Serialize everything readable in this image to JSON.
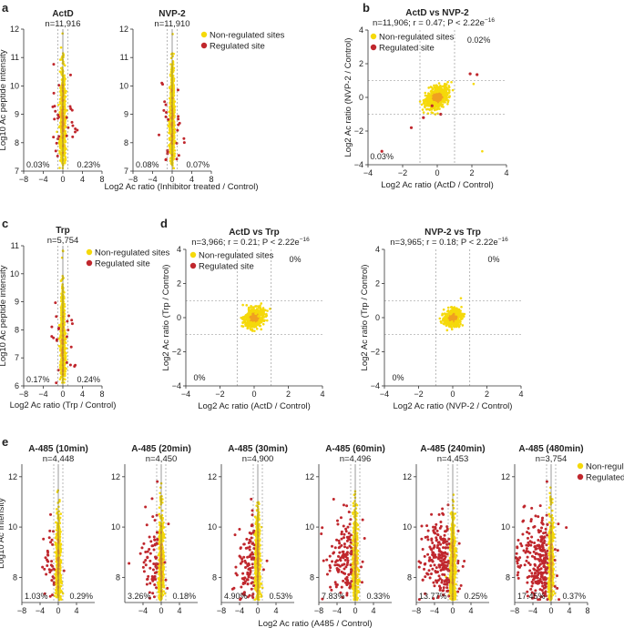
{
  "colors": {
    "nonreg": "#f5d90a",
    "dense": "#f0a020",
    "reg": "#c0272d",
    "axis": "#333333",
    "dash": "#888888"
  },
  "legend": {
    "nonreg": "Non-regulated sites",
    "reg": "Regulated site"
  },
  "panels": {
    "a": "a",
    "b": "b",
    "c": "c",
    "d": "d",
    "e": "e"
  },
  "chart_data": [
    {
      "id": "a1",
      "type": "scatter",
      "title": "ActD",
      "n": "n=11,916",
      "xlim": [
        -8,
        8
      ],
      "ylim": [
        7,
        12
      ],
      "xticks": [
        "−8",
        "−4",
        "0",
        "4",
        "8"
      ],
      "yticks": [
        "7",
        "8",
        "9",
        "10",
        "11",
        "12"
      ],
      "pct_left": "0.03%",
      "pct_right": "0.23%",
      "ylabel": "Log10 Ac peptide intensity",
      "legend": false
    },
    {
      "id": "a2",
      "type": "scatter",
      "title": "NVP-2",
      "n": "n=11,910",
      "xlim": [
        -8,
        8
      ],
      "ylim": [
        7,
        12
      ],
      "xticks": [
        "−8",
        "−4",
        "0",
        "4",
        "8"
      ],
      "yticks": [
        "7",
        "8",
        "9",
        "10",
        "11",
        "12"
      ],
      "pct_left": "0.08%",
      "pct_right": "0.07%",
      "legend": true
    },
    {
      "shared_xlabel": "Log2 Ac ratio (Inhibitor treated / Control)"
    },
    {
      "id": "b",
      "type": "scatter",
      "title": "ActD vs NVP-2",
      "stats": "n=11,906; r = 0.47; P < 2.22e",
      "stats_sup": "−16",
      "xlim": [
        -4,
        4
      ],
      "ylim": [
        -4,
        4
      ],
      "xticks": [
        "−4",
        "−2",
        "0",
        "2",
        "4"
      ],
      "yticks": [
        "−4",
        "−2",
        "0",
        "2",
        "4"
      ],
      "pct_top": "0.02%",
      "pct_bottom": "0.03%",
      "xlabel": "Log2 Ac ratio (ActD / Control)",
      "ylabel": "Log2 Ac ratio (NVP-2 / Control)",
      "legend": true
    },
    {
      "id": "c",
      "type": "scatter",
      "title": "Trp",
      "n": "n=5,754",
      "xlim": [
        -8,
        8
      ],
      "ylim": [
        6,
        11
      ],
      "xticks": [
        "−8",
        "−4",
        "0",
        "4",
        "8"
      ],
      "yticks": [
        "6",
        "7",
        "8",
        "9",
        "10",
        "11"
      ],
      "pct_left": "0.17%",
      "pct_right": "0.24%",
      "xlabel": "Log2 Ac ratio (Trp / Control)",
      "ylabel": "Log10 Ac peptide intensity",
      "legend": true
    },
    {
      "id": "d1",
      "type": "scatter",
      "title": "ActD vs Trp",
      "stats": "n=3,966; r = 0.21;  P < 2.22e",
      "stats_sup": "−16",
      "xlim": [
        -4,
        4
      ],
      "ylim": [
        -4,
        4
      ],
      "xticks": [
        "−4",
        "−2",
        "0",
        "2",
        "4"
      ],
      "yticks": [
        "−4",
        "−2",
        "0",
        "2",
        "4"
      ],
      "pct_top": "0%",
      "pct_bottom": "0%",
      "xlabel": "Log2 Ac ratio (ActD / Control)",
      "ylabel": "Log2 Ac ratio (Trp / Control)",
      "legend": true
    },
    {
      "id": "d2",
      "type": "scatter",
      "title": "NVP-2 vs  Trp",
      "stats": "n=3,965; r = 0.18;  P < 2.22e",
      "stats_sup": "−16",
      "xlim": [
        -4,
        4
      ],
      "ylim": [
        -4,
        4
      ],
      "xticks": [
        "−4",
        "−2",
        "0",
        "2",
        "4"
      ],
      "yticks": [
        "−4",
        "−2",
        "0",
        "2",
        "4"
      ],
      "pct_top": "0%",
      "pct_bottom": "0%",
      "xlabel": "Log2 Ac ratio (NVP-2 / Control)",
      "ylabel": "Log2 Ac ratio (Trp / Control)",
      "legend": false
    },
    {
      "id": "e1",
      "type": "scatter",
      "title": "A-485 (10min)",
      "n": "n=4,448",
      "xlim": [
        -8,
        8
      ],
      "ylim": [
        7,
        12.5
      ],
      "xticks": [
        "−8",
        "−4",
        "0",
        "4"
      ],
      "yticks": [
        "8",
        "10",
        "12"
      ],
      "pct_left": "1.03%",
      "pct_right": "0.29%",
      "ylabel": "Log10 Ac Intensity",
      "spread": 0.15
    },
    {
      "id": "e2",
      "type": "scatter",
      "title": "A-485 (20min)",
      "n": "n=4,450",
      "xlim": [
        -8,
        8
      ],
      "ylim": [
        7,
        12.5
      ],
      "xticks": [
        "−4",
        "0",
        "4"
      ],
      "yticks": [
        "8",
        "10",
        "12"
      ],
      "pct_left": "3.26%",
      "pct_right": "0.18%",
      "spread": 0.35
    },
    {
      "id": "e3",
      "type": "scatter",
      "title": "A-485 (30min)",
      "n": "n=4,900",
      "xlim": [
        -8,
        8
      ],
      "ylim": [
        7,
        12.5
      ],
      "xticks": [
        "−8",
        "−4",
        "0",
        "4"
      ],
      "yticks": [
        "8",
        "10",
        "12"
      ],
      "pct_left": "4.90%",
      "pct_right": "0.53%",
      "spread": 0.5
    },
    {
      "id": "e4",
      "type": "scatter",
      "title": "A-485 (60min)",
      "n": "n=4,496",
      "xlim": [
        -8,
        8
      ],
      "ylim": [
        7,
        12.5
      ],
      "xticks": [
        "−8",
        "−4",
        "0",
        "4"
      ],
      "yticks": [
        "8",
        "10",
        "12"
      ],
      "pct_left": "7.83%",
      "pct_right": "0.33%",
      "spread": 0.65
    },
    {
      "id": "e5",
      "type": "scatter",
      "title": "A-485 (240min)",
      "n": "n=4,453",
      "xlim": [
        -8,
        8
      ],
      "ylim": [
        7,
        12.5
      ],
      "xticks": [
        "−8",
        "−4",
        "0",
        "4"
      ],
      "yticks": [
        "8",
        "10",
        "12"
      ],
      "pct_left": "13.77%",
      "pct_right": "0.25%",
      "spread": 0.85
    },
    {
      "id": "e6",
      "type": "scatter",
      "title": "A-485 (480min)",
      "n": "n=3,754",
      "xlim": [
        -8,
        8
      ],
      "ylim": [
        7,
        12.5
      ],
      "xticks": [
        "−8",
        "−4",
        "0",
        "4",
        "8"
      ],
      "yticks": [
        "8",
        "10",
        "12"
      ],
      "pct_left": "17.45%",
      "pct_right": "0.37%",
      "spread": 1.0,
      "legend": true
    },
    {
      "shared_xlabel_e": "Log2 Ac ratio (A485 / Control)"
    }
  ]
}
